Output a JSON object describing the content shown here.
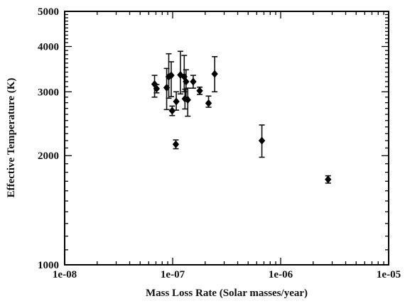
{
  "chart_data": {
    "type": "scatter",
    "xscale": "log",
    "yscale": "log",
    "xlim": [
      1e-08,
      1e-05
    ],
    "ylim": [
      1000,
      5000
    ],
    "xlabel": "Mass Loss Rate (Solar masses/year)",
    "ylabel": "Effective Temperature (K)",
    "x_ticks": [
      1e-08,
      1e-07,
      1e-06,
      1e-05
    ],
    "x_tick_labels": [
      "1e-08",
      "1e-07",
      "1e-06",
      "1e-05"
    ],
    "y_ticks": [
      1000,
      2000,
      3000,
      4000,
      5000
    ],
    "y_tick_labels": [
      "1000",
      "2000",
      "3000",
      "4000",
      "5000"
    ],
    "points": [
      {
        "x": 6.8e-08,
        "y": 3150,
        "yerr_low": 250,
        "yerr_high": 180
      },
      {
        "x": 7.1e-08,
        "y": 3060,
        "yerr_low": 80,
        "yerr_high": 80
      },
      {
        "x": 8.8e-08,
        "y": 3080,
        "yerr_low": 400,
        "yerr_high": 400
      },
      {
        "x": 9.2e-08,
        "y": 3300,
        "yerr_low": 420,
        "yerr_high": 520
      },
      {
        "x": 9.7e-08,
        "y": 3330,
        "yerr_low": 420,
        "yerr_high": 300
      },
      {
        "x": 9.9e-08,
        "y": 2660,
        "yerr_low": 80,
        "yerr_high": 80
      },
      {
        "x": 1.07e-07,
        "y": 2150,
        "yerr_low": 60,
        "yerr_high": 60
      },
      {
        "x": 1.08e-07,
        "y": 2820,
        "yerr_low": 150,
        "yerr_high": 180
      },
      {
        "x": 1.18e-07,
        "y": 3340,
        "yerr_low": 380,
        "yerr_high": 540
      },
      {
        "x": 1.28e-07,
        "y": 3300,
        "yerr_low": 300,
        "yerr_high": 480
      },
      {
        "x": 1.3e-07,
        "y": 2870,
        "yerr_low": 180,
        "yerr_high": 180
      },
      {
        "x": 1.33e-07,
        "y": 3200,
        "yerr_low": 300,
        "yerr_high": 250
      },
      {
        "x": 1.38e-07,
        "y": 2850,
        "yerr_low": 280,
        "yerr_high": 220
      },
      {
        "x": 1.55e-07,
        "y": 3200,
        "yerr_low": 130,
        "yerr_high": 130
      },
      {
        "x": 1.78e-07,
        "y": 3020,
        "yerr_low": 70,
        "yerr_high": 70
      },
      {
        "x": 2.15e-07,
        "y": 2790,
        "yerr_low": 70,
        "yerr_high": 130
      },
      {
        "x": 2.45e-07,
        "y": 3360,
        "yerr_low": 360,
        "yerr_high": 390
      },
      {
        "x": 6.7e-07,
        "y": 2200,
        "yerr_low": 220,
        "yerr_high": 230
      },
      {
        "x": 2.75e-06,
        "y": 1720,
        "yerr_low": 40,
        "yerr_high": 40
      }
    ],
    "grid": false,
    "legend": "none",
    "marker": "diamond",
    "marker_color": "#000000"
  }
}
